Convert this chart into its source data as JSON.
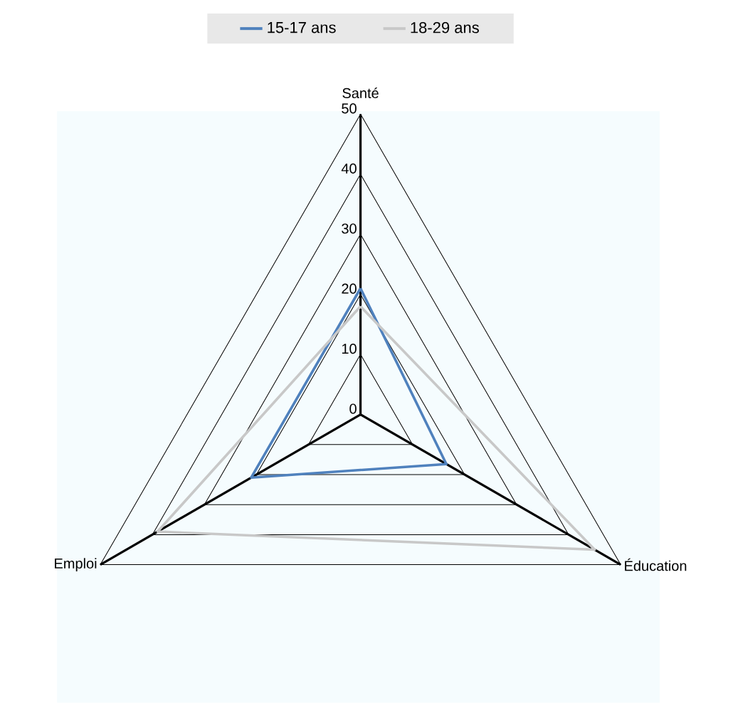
{
  "chart_data": {
    "type": "radar",
    "categories": [
      "Santé",
      "Éducation",
      "Emploi"
    ],
    "series": [
      {
        "name": "15-17 ans",
        "color": "#4f81bd",
        "values": [
          21,
          16.5,
          21
        ]
      },
      {
        "name": "18-29 ans",
        "color": "#c8c8c8",
        "values": [
          18,
          45,
          39
        ]
      }
    ],
    "ylim": [
      0,
      50
    ],
    "yticks": [
      0,
      10,
      20,
      30,
      40,
      50
    ],
    "grid": true,
    "legend": "top"
  }
}
